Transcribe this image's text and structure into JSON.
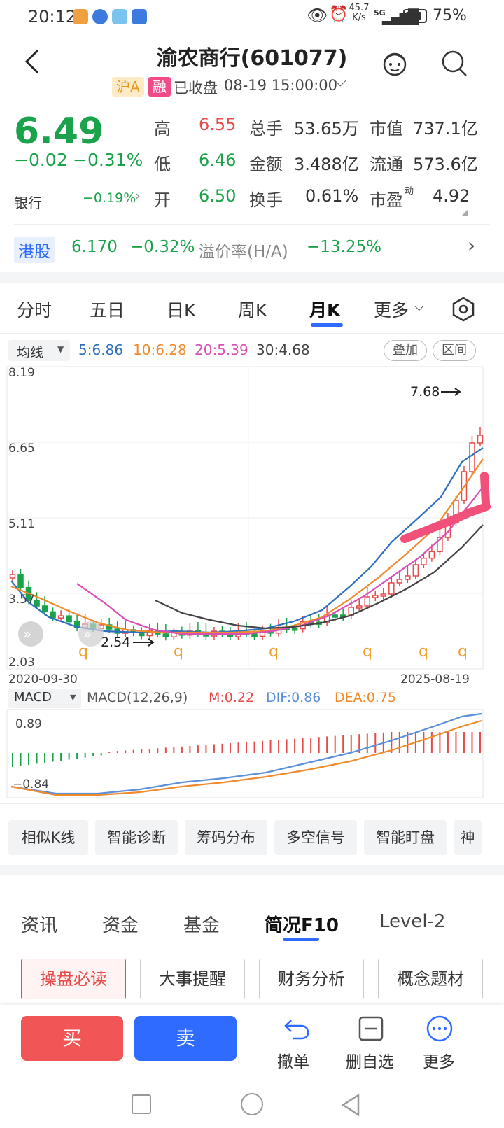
{
  "status": {
    "time": "20:12",
    "speed_top": "45.7",
    "speed_unit": "K/s",
    "signal": "5G",
    "battery": "75%"
  },
  "header": {
    "title": "渝农商行(601077)",
    "market_tag": "沪A",
    "margin_tag": "融",
    "status": "已收盘",
    "datetime": "08-19 15:00:00"
  },
  "quote": {
    "price": "6.49",
    "change": "−0.02",
    "change_pct": "−0.31%",
    "sector": "银行",
    "sector_pct": "−0.19%",
    "high_label": "高",
    "high": "6.55",
    "low_label": "低",
    "low": "6.46",
    "open_label": "开",
    "open": "6.50",
    "volume_label": "总手",
    "volume": "53.65万",
    "amount_label": "金额",
    "amount": "3.488亿",
    "turnover_label": "换手",
    "turnover": "0.61%",
    "mktcap_label": "市值",
    "mktcap": "737.1亿",
    "float_label": "流通",
    "float": "573.6亿",
    "pe_label": "市盈",
    "pe_sup": "动",
    "pe": "4.92"
  },
  "hk": {
    "label": "港股",
    "price": "6.170",
    "change_pct": "−0.32%",
    "premium_label": "溢价率(H/A)",
    "premium": "−13.25%"
  },
  "chart_tabs": [
    "分时",
    "五日",
    "日K",
    "周K",
    "月K",
    "更多"
  ],
  "active_chart_tab": "月K",
  "ma": {
    "selector": "均线",
    "ma5": "5:6.86",
    "ma10": "10:6.28",
    "ma20": "20:5.39",
    "ma30": "30:4.68",
    "overlay_btn": "叠加",
    "range_btn": "区间"
  },
  "kchart": {
    "y_labels": [
      "8.19",
      "6.65",
      "5.11",
      "3.57",
      "2.03"
    ],
    "x_start": "2020-09-30",
    "x_end": "2025-08-19",
    "max_label": "7.68",
    "min_label": "2.54",
    "q_marker": "q"
  },
  "macd": {
    "selector": "MACD",
    "params": "MACD(12,26,9)",
    "m": "M:0.22",
    "dif": "DIF:0.86",
    "dea": "DEA:0.75",
    "y_top": "0.89",
    "y_bottom": "−0.84"
  },
  "tools": [
    "相似K线",
    "智能诊断",
    "筹码分布",
    "多空信号",
    "智能盯盘",
    "神"
  ],
  "bottom_tabs": [
    "资讯",
    "资金",
    "基金",
    "简况F10",
    "Level-2"
  ],
  "active_bottom_tab": "简况F10",
  "f10_buttons": [
    "操盘必读",
    "大事提醒",
    "财务分析",
    "概念题材"
  ],
  "actions": {
    "buy": "买",
    "sell": "卖",
    "cancel": "撤单",
    "remove_watch": "删自选",
    "more": "更多"
  },
  "colors": {
    "up": "#e84a4a",
    "down": "#1aa34a",
    "accent": "#2f6bff",
    "ma5": "#2f6fbf",
    "ma10": "#f08a2b",
    "ma20": "#d94fb8",
    "ma30": "#444444"
  }
}
